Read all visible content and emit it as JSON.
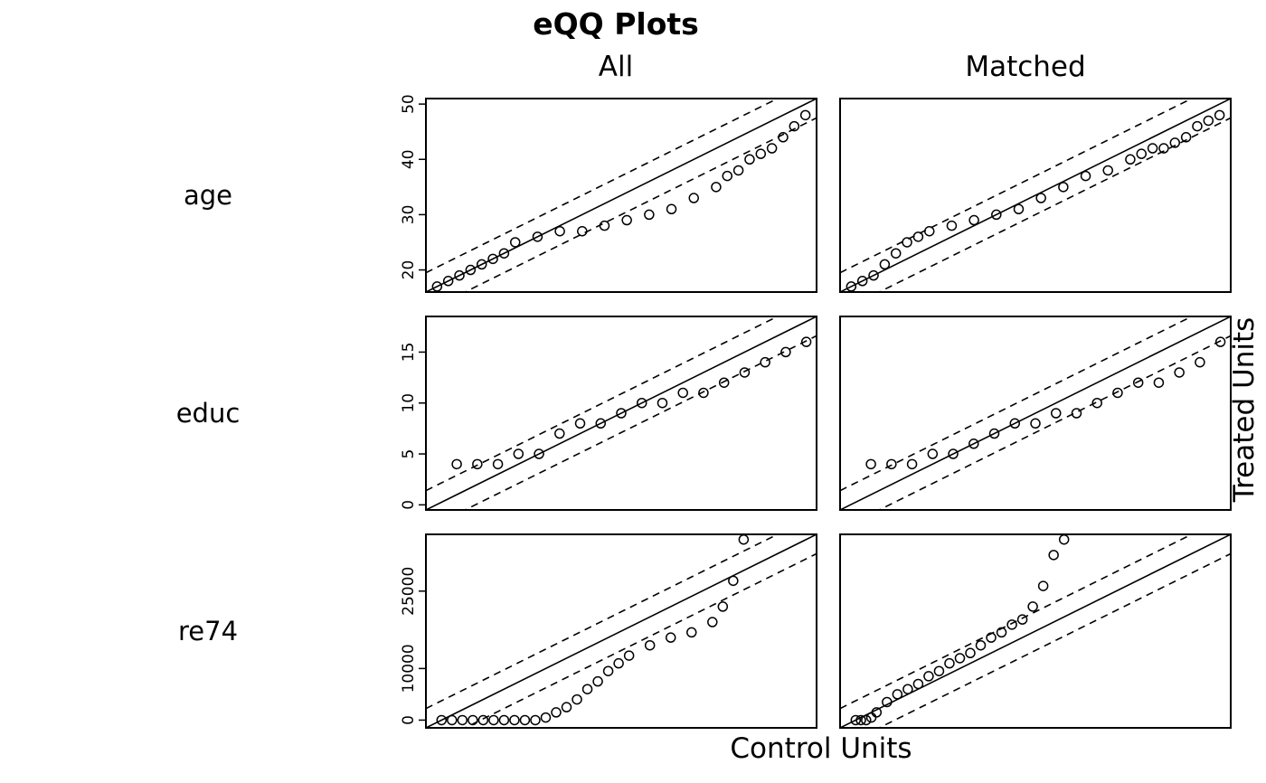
{
  "title": "eQQ Plots",
  "columns": [
    "All",
    "Matched"
  ],
  "xlabel": "Control Units",
  "ylabel": "Treated Units",
  "chart_data": {
    "type": "scatter",
    "title": "eQQ Plots",
    "xlabel": "Control Units",
    "ylabel": "Treated Units",
    "grid": false,
    "reference": "solid y = x line with dashed lines at ± 0.1 of the range",
    "panels": [
      {
        "variable": "age",
        "range": [
          16,
          51
        ],
        "ticks": [
          20,
          30,
          40,
          50
        ],
        "all": {
          "x": [
            17,
            18,
            19,
            20,
            21,
            22,
            23,
            24,
            26,
            28,
            30,
            32,
            34,
            36,
            38,
            40,
            42,
            43,
            44,
            45,
            46,
            47,
            48,
            49,
            50
          ],
          "y": [
            17,
            18,
            19,
            20,
            21,
            22,
            23,
            25,
            26,
            27,
            27,
            28,
            29,
            30,
            31,
            33,
            35,
            37,
            38,
            40,
            41,
            42,
            44,
            46,
            48
          ]
        },
        "matched": {
          "x": [
            17,
            18,
            19,
            20,
            21,
            22,
            23,
            24,
            26,
            28,
            30,
            32,
            34,
            36,
            38,
            40,
            42,
            43,
            44,
            45,
            46,
            47,
            48,
            49,
            50
          ],
          "y": [
            17,
            18,
            19,
            21,
            23,
            25,
            26,
            27,
            28,
            29,
            30,
            31,
            33,
            35,
            37,
            38,
            40,
            41,
            42,
            42,
            43,
            44,
            46,
            47,
            48
          ]
        }
      },
      {
        "variable": "educ",
        "range": [
          -0.5,
          18.5
        ],
        "ticks": [
          0,
          5,
          10,
          15
        ],
        "all": {
          "x": [
            1,
            2,
            3,
            4,
            5,
            6,
            7,
            8,
            9,
            10,
            11,
            12,
            13,
            14,
            15,
            16,
            17,
            18
          ],
          "y": [
            4,
            4,
            4,
            5,
            5,
            7,
            8,
            8,
            9,
            10,
            10,
            11,
            11,
            12,
            13,
            14,
            15,
            16
          ]
        },
        "matched": {
          "x": [
            1,
            2,
            3,
            4,
            5,
            6,
            7,
            8,
            9,
            10,
            11,
            12,
            13,
            14,
            15,
            16,
            17,
            18
          ],
          "y": [
            4,
            4,
            4,
            5,
            5,
            6,
            7,
            8,
            8,
            9,
            9,
            10,
            11,
            12,
            12,
            13,
            14,
            16
          ]
        }
      },
      {
        "variable": "re74",
        "range": [
          -1500,
          36000
        ],
        "ticks": [
          0,
          10000,
          25000
        ],
        "all": {
          "x": [
            0,
            1000,
            2000,
            3000,
            4000,
            5000,
            6000,
            7000,
            8000,
            9000,
            10000,
            11000,
            12000,
            13000,
            14000,
            15000,
            16000,
            17000,
            18000,
            20000,
            22000,
            24000,
            26000,
            27000,
            28000,
            29000
          ],
          "y": [
            0,
            0,
            0,
            0,
            0,
            0,
            0,
            0,
            0,
            0,
            500,
            1500,
            2500,
            4000,
            6000,
            7500,
            9500,
            11000,
            12500,
            14500,
            16000,
            17000,
            19000,
            22000,
            27000,
            35000
          ]
        },
        "matched": {
          "x": [
            0,
            500,
            1000,
            1500,
            2000,
            3000,
            4000,
            5000,
            6000,
            7000,
            8000,
            9000,
            10000,
            11000,
            12000,
            13000,
            14000,
            15000,
            16000,
            17000,
            18000,
            19000,
            20000
          ],
          "y": [
            0,
            0,
            0,
            500,
            1500,
            3500,
            5000,
            6000,
            7000,
            8500,
            9500,
            11000,
            12000,
            13000,
            14500,
            16000,
            17000,
            18500,
            19500,
            22000,
            26000,
            32000,
            35000
          ]
        }
      }
    ]
  }
}
